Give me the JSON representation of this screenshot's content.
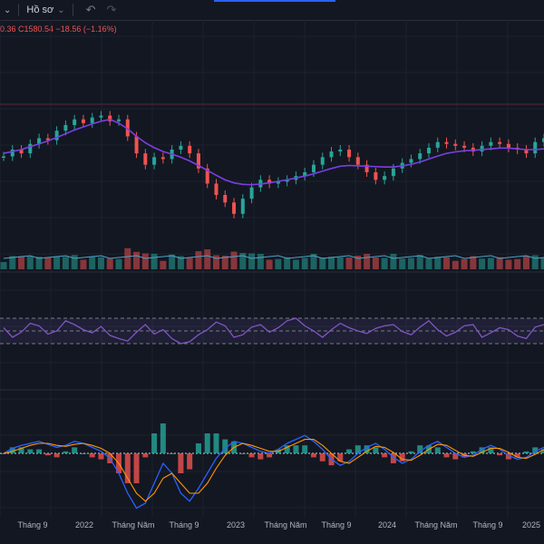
{
  "toolbar": {
    "profile_label": "Hồ sơ",
    "chevron_icon": "chevron-down-icon",
    "undo_icon": "undo-icon",
    "redo_icon": "redo-icon"
  },
  "legend": {
    "text": "0.36  C1580.54  −18.56 (−1.16%)"
  },
  "colors": {
    "background": "#131722",
    "grid": "#1e222d",
    "up": "#26a69a",
    "down": "#ef5350",
    "ma": "#7b3fe4",
    "rsi": "#7e57c2",
    "macd": "#2962ff",
    "signal": "#ff9800"
  },
  "time_axis": [
    {
      "label": "Tháng 9",
      "x": 36
    },
    {
      "label": "2022",
      "x": 93
    },
    {
      "label": "Tháng Năm",
      "x": 147
    },
    {
      "label": "Tháng 9",
      "x": 203
    },
    {
      "label": "2023",
      "x": 260
    },
    {
      "label": "Tháng Năm",
      "x": 315
    },
    {
      "label": "Tháng 9",
      "x": 371
    },
    {
      "label": "2024",
      "x": 427
    },
    {
      "label": "Tháng Năm",
      "x": 481
    },
    {
      "label": "Tháng 9",
      "x": 538
    },
    {
      "label": "2025",
      "x": 595
    }
  ],
  "chart_data": {
    "type": "line",
    "series": [
      {
        "values": [
          1462,
          1480,
          1470,
          1495,
          1510,
          1505,
          1530,
          1545,
          1560,
          1550,
          1565,
          1570,
          1555,
          1560,
          1515,
          1470,
          1440,
          1460,
          1455,
          1480,
          1490,
          1470,
          1430,
          1390,
          1360,
          1340,
          1310,
          1350,
          1380,
          1400,
          1390,
          1395,
          1400,
          1410,
          1420,
          1440,
          1460,
          1475,
          1480,
          1460,
          1440,
          1420,
          1400,
          1410,
          1430,
          1445,
          1455,
          1470,
          1485,
          1500,
          1495,
          1490,
          1485,
          1475,
          1490,
          1500,
          1495,
          1485,
          1480,
          1470,
          1500,
          1510
        ]
      },
      {
        "values": [
          1470,
          1475,
          1480,
          1488,
          1495,
          1503,
          1512,
          1522,
          1532,
          1540,
          1548,
          1555,
          1560,
          1550,
          1535,
          1515,
          1498,
          1485,
          1475,
          1468,
          1460,
          1450,
          1438,
          1425,
          1412,
          1400,
          1392,
          1388,
          1387,
          1389,
          1392,
          1396,
          1400,
          1405,
          1410,
          1416,
          1423,
          1430,
          1436,
          1438,
          1437,
          1436,
          1435,
          1434,
          1434,
          1437,
          1441,
          1447,
          1455,
          1463,
          1470,
          1474,
          1477,
          1478,
          1480,
          1482,
          1484,
          1484,
          1482,
          1480,
          1480,
          1482
        ]
      }
    ],
    "rsi": {
      "values": [
        55,
        40,
        48,
        62,
        58,
        45,
        50,
        66,
        60,
        52,
        47,
        57,
        43,
        38,
        34,
        48,
        60,
        45,
        52,
        38,
        30,
        33,
        44,
        52,
        64,
        58,
        40,
        44,
        56,
        60,
        48,
        55,
        66,
        70,
        58,
        50,
        40,
        52,
        62,
        55,
        50,
        46,
        54,
        58,
        60,
        49,
        44,
        56,
        66,
        52,
        42,
        48,
        58,
        60,
        40,
        47,
        55,
        52,
        42,
        38,
        56,
        60
      ],
      "upper": 70,
      "lower": 30
    },
    "macd": {
      "macd": [
        0,
        5,
        8,
        10,
        12,
        9,
        6,
        8,
        12,
        10,
        6,
        2,
        -5,
        -20,
        -40,
        -55,
        -50,
        -30,
        -10,
        -20,
        -40,
        -48,
        -35,
        -20,
        -5,
        5,
        12,
        10,
        6,
        2,
        0,
        4,
        10,
        14,
        18,
        12,
        4,
        -6,
        -12,
        -8,
        0,
        6,
        10,
        4,
        -4,
        -10,
        -6,
        2,
        8,
        12,
        6,
        0,
        -4,
        -2,
        4,
        8,
        4,
        -2,
        -6,
        -4,
        2,
        6
      ],
      "signal": [
        0,
        2,
        5,
        8,
        10,
        10,
        8,
        7,
        9,
        10,
        8,
        5,
        0,
        -10,
        -25,
        -40,
        -48,
        -40,
        -25,
        -20,
        -30,
        -40,
        -40,
        -30,
        -15,
        -2,
        6,
        10,
        8,
        5,
        2,
        2,
        6,
        10,
        14,
        14,
        8,
        0,
        -8,
        -10,
        -4,
        2,
        7,
        6,
        1,
        -6,
        -7,
        -2,
        4,
        9,
        8,
        3,
        -2,
        -3,
        1,
        5,
        5,
        1,
        -4,
        -5,
        -1,
        4
      ]
    }
  }
}
